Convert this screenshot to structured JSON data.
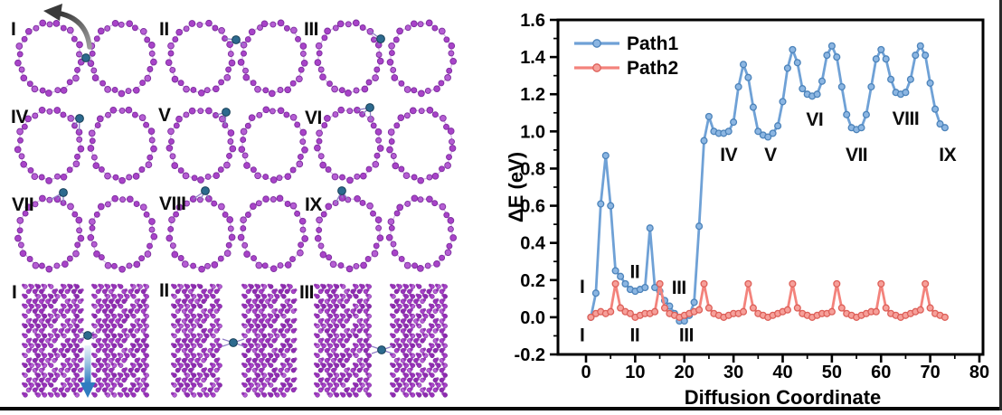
{
  "chart_data": {
    "type": "line",
    "title": "",
    "xlabel": "Diffusion Coordinate",
    "ylabel": "ΔE (eV)",
    "xlim": [
      -6,
      81
    ],
    "ylim": [
      -0.2,
      1.6
    ],
    "grid": false,
    "x_ticks": [
      0,
      10,
      20,
      30,
      40,
      50,
      60,
      70,
      80
    ],
    "x_minor_ticks": [
      5,
      15,
      25,
      35,
      45,
      55,
      65,
      75
    ],
    "y_ticks": [
      -0.2,
      0.0,
      0.2,
      0.4,
      0.6,
      0.8,
      1.0,
      1.2,
      1.4,
      1.6
    ],
    "y_minor_step": 0.1,
    "legend": {
      "position": "top-left",
      "entries": [
        "Path1",
        "Path2"
      ]
    },
    "x_start": 1,
    "x_step": 1,
    "series": [
      {
        "name": "Path1",
        "line_color": "#6fa1d6",
        "marker_fill": "#8cb6e2",
        "marker_stroke": "#4c83ba",
        "values": [
          0.0,
          0.13,
          0.61,
          0.87,
          0.6,
          0.25,
          0.22,
          0.18,
          0.15,
          0.14,
          0.15,
          0.16,
          0.48,
          0.16,
          0.14,
          0.09,
          0.06,
          0.02,
          -0.02,
          -0.02,
          0.01,
          0.08,
          0.49,
          0.95,
          1.08,
          1.0,
          0.99,
          0.99,
          1.0,
          1.05,
          1.24,
          1.36,
          1.29,
          1.13,
          1.0,
          0.98,
          0.97,
          0.99,
          1.03,
          1.16,
          1.34,
          1.44,
          1.37,
          1.23,
          1.2,
          1.19,
          1.2,
          1.27,
          1.41,
          1.46,
          1.4,
          1.24,
          1.09,
          1.02,
          1.01,
          1.02,
          1.09,
          1.24,
          1.39,
          1.44,
          1.39,
          1.28,
          1.21,
          1.2,
          1.21,
          1.28,
          1.41,
          1.46,
          1.41,
          1.26,
          1.12,
          1.04,
          1.02
        ]
      },
      {
        "name": "Path2",
        "line_color": "#f3837c",
        "marker_fill": "#f6a09a",
        "marker_stroke": "#dd5f58",
        "values": [
          0.0,
          0.02,
          0.03,
          0.02,
          0.03,
          0.18,
          0.05,
          0.03,
          0.02,
          0.0,
          0.01,
          0.02,
          0.02,
          0.03,
          0.18,
          0.05,
          0.02,
          0.01,
          0.0,
          0.01,
          0.02,
          0.03,
          0.04,
          0.18,
          0.05,
          0.02,
          0.01,
          0.0,
          0.01,
          0.02,
          0.02,
          0.03,
          0.18,
          0.05,
          0.02,
          0.01,
          0.0,
          0.01,
          0.02,
          0.03,
          0.04,
          0.18,
          0.05,
          0.02,
          0.01,
          0.0,
          0.01,
          0.02,
          0.02,
          0.03,
          0.18,
          0.05,
          0.02,
          0.01,
          0.0,
          0.01,
          0.02,
          0.03,
          0.03,
          0.18,
          0.05,
          0.02,
          0.01,
          0.0,
          0.01,
          0.02,
          0.03,
          0.04,
          0.18,
          0.05,
          0.02,
          0.01,
          0.0
        ]
      }
    ],
    "annotations": [
      {
        "text": "I",
        "x": -0.8,
        "y": 0.165
      },
      {
        "text": "II",
        "x": 9.9,
        "y": 0.245
      },
      {
        "text": "III",
        "x": 18.9,
        "y": 0.16
      },
      {
        "text": "IV",
        "x": 29.0,
        "y": 0.875
      },
      {
        "text": "V",
        "x": 37.5,
        "y": 0.875
      },
      {
        "text": "VI",
        "x": 46.5,
        "y": 1.065
      },
      {
        "text": "VII",
        "x": 55.0,
        "y": 0.875
      },
      {
        "text": "VIII",
        "x": 65.0,
        "y": 1.07
      },
      {
        "text": "IX",
        "x": 73.5,
        "y": 0.875
      },
      {
        "text": "I",
        "x": -0.8,
        "y": -0.095
      },
      {
        "text": "II",
        "x": 9.9,
        "y": -0.095
      },
      {
        "text": "III",
        "x": 20.4,
        "y": -0.095
      }
    ]
  },
  "structure_panels": {
    "ring_panels": [
      {
        "label": "I",
        "dopant_offset": [
          40,
          0
        ],
        "has_curved_arrow": true
      },
      {
        "label": "II",
        "dopant_offset": [
          39,
          -20
        ],
        "has_curved_arrow": false
      },
      {
        "label": "III",
        "dopant_offset": [
          35,
          -21
        ],
        "has_curved_arrow": false
      },
      {
        "label": "IV",
        "dopant_offset": [
          33,
          -29
        ],
        "has_curved_arrow": false
      },
      {
        "label": "V",
        "dopant_offset": [
          28,
          -36
        ],
        "has_curved_arrow": false
      },
      {
        "label": "VI",
        "dopant_offset": [
          23,
          -41
        ],
        "has_curved_arrow": false
      },
      {
        "label": "VII",
        "dopant_offset": [
          15,
          -45
        ],
        "has_curved_arrow": false
      },
      {
        "label": "VIII",
        "dopant_offset": [
          5,
          -47
        ],
        "has_curved_arrow": false
      },
      {
        "label": "IX",
        "dopant_offset": [
          -8,
          -47
        ],
        "has_curved_arrow": false
      }
    ],
    "slab_panels": [
      {
        "label": "I",
        "dopant": [
          97,
          371
        ],
        "has_down_arrow": true
      },
      {
        "label": "II",
        "dopant": [
          258,
          379
        ],
        "has_down_arrow": false
      },
      {
        "label": "III",
        "dopant": [
          422,
          387
        ],
        "has_down_arrow": false
      }
    ],
    "colors": {
      "atom_violet": "#a843c8",
      "atom_violet_dark": "#7c2d9e",
      "atom_violet_light": "#b55ed3",
      "dopant_teal": "#2d6a8e",
      "dopant_teal_dark": "#173f57",
      "bond": "#8f7ec5",
      "curved_arrow": "#4f4f4f",
      "down_arrow": "#2f7cc0"
    }
  }
}
